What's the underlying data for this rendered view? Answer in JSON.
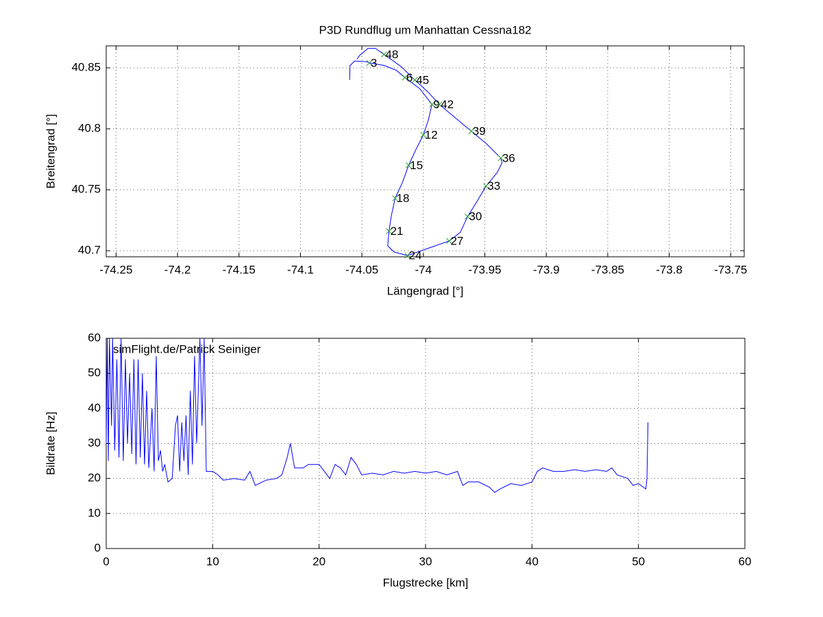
{
  "chart_data": [
    {
      "type": "line",
      "title": "P3D Rundflug um Manhattan Cessna182",
      "xlabel": "Längengrad [°]",
      "ylabel": "Breitengrad [°]",
      "xlim": [
        -74.258,
        -73.739
      ],
      "ylim": [
        40.695,
        40.868
      ],
      "xticks": [
        -74.25,
        -74.2,
        -74.15,
        -74.1,
        -74.05,
        -74,
        -73.95,
        -73.9,
        -73.85,
        -73.8,
        -73.75
      ],
      "yticks": [
        40.7,
        40.75,
        40.8,
        40.85
      ],
      "grid": true,
      "x": [
        -74.06,
        -74.0597,
        -74.056,
        -74.046,
        -74.044,
        -74.032,
        -74.022,
        -74.015,
        -74.003,
        -73.993,
        -73.996,
        -74.0,
        -74.006,
        -74.012,
        -74.017,
        -74.023,
        -74.026,
        -74.028,
        -74.029,
        -74.024,
        -74.013,
        -73.996,
        -73.979,
        -73.97,
        -73.964,
        -73.956,
        -73.949,
        -73.94,
        -73.936,
        -73.937,
        -73.949,
        -73.961,
        -73.974,
        -73.987,
        -73.996,
        -74.007,
        -74.018,
        -74.032,
        -74.039,
        -74.045,
        -74.052,
        -74.054
      ],
      "series": [
        {
          "color": "#0000ff",
          "values": [
            40.84,
            40.8517,
            40.8556,
            40.855,
            40.854,
            40.852,
            40.848,
            40.842,
            40.833,
            40.82,
            40.807,
            40.795,
            40.783,
            40.77,
            40.756,
            40.743,
            40.729,
            40.716,
            40.704,
            40.699,
            40.696,
            40.702,
            40.708,
            40.715,
            40.728,
            40.741,
            40.753,
            40.764,
            40.772,
            40.776,
            40.788,
            40.798,
            40.809,
            40.82,
            40.83,
            40.84,
            40.851,
            40.861,
            40.866,
            40.866,
            40.86,
            40.857
          ]
        }
      ],
      "markers": {
        "color": "#2ca02c",
        "x": [
          -74.044,
          -74.015,
          -73.993,
          -74.0,
          -74.012,
          -74.023,
          -74.028,
          -74.013,
          -73.979,
          -73.964,
          -73.949,
          -73.937,
          -73.961,
          -73.987,
          -74.007,
          -74.032
        ],
        "values": [
          40.854,
          40.842,
          40.82,
          40.795,
          40.77,
          40.743,
          40.716,
          40.696,
          40.708,
          40.728,
          40.753,
          40.776,
          40.798,
          40.82,
          40.84,
          40.861
        ],
        "labels": [
          "3",
          "6",
          "9",
          "12",
          "15",
          "18",
          "21",
          "24",
          "27",
          "30",
          "33",
          "36",
          "39",
          "42",
          "45",
          "48"
        ]
      }
    },
    {
      "type": "line",
      "xlabel": "Flugstrecke [km]",
      "ylabel": "Bildrate [Hz]",
      "annotation": "simFlight.de/Patrick Seiniger",
      "xlim": [
        0,
        60
      ],
      "ylim": [
        0,
        60
      ],
      "xticks": [
        0,
        10,
        20,
        30,
        40,
        50,
        60
      ],
      "yticks": [
        0,
        10,
        20,
        30,
        40,
        50,
        60
      ],
      "grid": true,
      "x": [
        0,
        0.1,
        0.2,
        0.3,
        0.5,
        0.6,
        0.8,
        1.0,
        1.2,
        1.4,
        1.6,
        1.8,
        2.0,
        2.2,
        2.4,
        2.6,
        2.8,
        3.0,
        3.2,
        3.4,
        3.6,
        3.8,
        4.0,
        4.3,
        4.5,
        4.7,
        4.9,
        5.1,
        5.3,
        5.5,
        5.8,
        6.2,
        6.5,
        6.7,
        6.9,
        7.1,
        7.3,
        7.5,
        7.7,
        7.9,
        8.1,
        8.3,
        8.5,
        8.8,
        9.0,
        9.2,
        9.4,
        10,
        10.5,
        11,
        12,
        13,
        13.5,
        14,
        15,
        16,
        16.5,
        17,
        17.3,
        17.7,
        18.5,
        19,
        20,
        21,
        21.5,
        22,
        22.5,
        23,
        23.5,
        24,
        25,
        26,
        27,
        28,
        29,
        30,
        31,
        32,
        33,
        33.5,
        34,
        35,
        36,
        36.5,
        37,
        38,
        39,
        40,
        40.5,
        41,
        42,
        43,
        44,
        45,
        46,
        47,
        47.5,
        48,
        49,
        49.5,
        50,
        50.7,
        50.8,
        50.9
      ],
      "series": [
        {
          "color": "#0000ff",
          "values": [
            30,
            60,
            25,
            60,
            35,
            60,
            28,
            54,
            26,
            60,
            25,
            54,
            30,
            50,
            27,
            54,
            24,
            54,
            26,
            50,
            24,
            45,
            23,
            40,
            22,
            55,
            25,
            28,
            22,
            24,
            19,
            20,
            35,
            38,
            22,
            36,
            25,
            38,
            21,
            45,
            24,
            55,
            30,
            60,
            35,
            60,
            22,
            22,
            21,
            19.5,
            20,
            19.5,
            22,
            18,
            19.5,
            20,
            21,
            26,
            30,
            23,
            23,
            24,
            24,
            20,
            24,
            23,
            21,
            26,
            24,
            21,
            21.5,
            21,
            22,
            21.5,
            22,
            21.5,
            22,
            21,
            22,
            18,
            19,
            19,
            17.5,
            16,
            17,
            18.5,
            18,
            19,
            22,
            23,
            22,
            22,
            22.5,
            22,
            22.5,
            22,
            23,
            21,
            20,
            18,
            18.5,
            17,
            20,
            36
          ]
        }
      ]
    }
  ]
}
